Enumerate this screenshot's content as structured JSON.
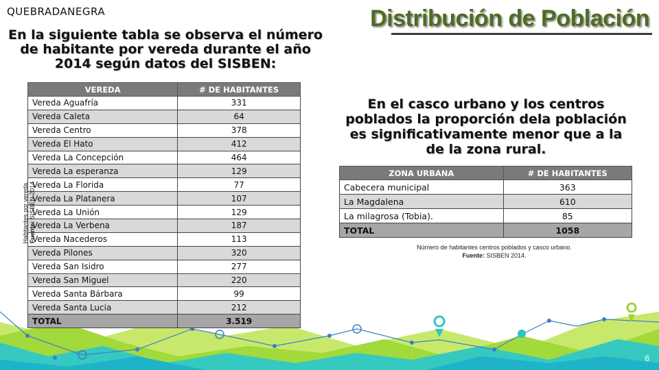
{
  "brand": "QUEBRADANEGRA",
  "title": "Distribución de Población",
  "intro_text": "En la siguiente tabla se observa el número de habitante por vereda durante el año 2014 según datos del SISBEN:",
  "vereda_table": {
    "headers": [
      "VEREDA",
      "# DE HABITANTES"
    ],
    "rows": [
      [
        "Vereda Aguafría",
        "331"
      ],
      [
        "Vereda Caleta",
        "64"
      ],
      [
        "Vereda Centro",
        "378"
      ],
      [
        "Vereda El Hato",
        "412"
      ],
      [
        "Vereda La Concepción",
        "464"
      ],
      [
        "Vereda La esperanza",
        "129"
      ],
      [
        "Vereda La Florida",
        "77"
      ],
      [
        "Vereda La Platanera",
        "107"
      ],
      [
        "Vereda La Unión",
        "129"
      ],
      [
        "Vereda La Verbena",
        "187"
      ],
      [
        "Vereda Nacederos",
        "113"
      ],
      [
        "Vereda Pilones",
        "320"
      ],
      [
        "Vereda San Isidro",
        "277"
      ],
      [
        "Vereda San Miguel",
        "220"
      ],
      [
        "Vereda Santa Bárbara",
        "99"
      ],
      [
        "Vereda Santa Lucia",
        "212"
      ]
    ],
    "total": [
      "TOTAL",
      "3.519"
    ]
  },
  "side_caption": {
    "line1": "Habitantes por vereda.",
    "source_label": "Fuente:",
    "source_value": "SISBEN 2014"
  },
  "right_text": "En el casco urbano y los centros poblados la proporción dela población es significativamente menor que a la de la zona rural.",
  "urban_table": {
    "headers": [
      "ZONA URBANA",
      "# DE HABITANTES"
    ],
    "rows": [
      [
        "Cabecera municipal",
        "363"
      ],
      [
        "La Magdalena",
        "610"
      ],
      [
        "La milagrosa (Tobia).",
        "85"
      ]
    ],
    "total": [
      "TOTAL",
      "1058"
    ]
  },
  "urban_caption": {
    "line1": "Número de habitantes centros poblados y casco urbano.",
    "source_label": "Fuente:",
    "source_value": "SISBEN 2014."
  },
  "page_number": "6",
  "colors": {
    "title_green": "#4f6b22",
    "header_gray": "#7a7a7a",
    "row_alt": "#d9d9d9",
    "total_gray": "#a6a6a6",
    "accent_teal": "#2ec4c4",
    "accent_lime": "#9ad334",
    "accent_blue": "#3a7fc9"
  }
}
